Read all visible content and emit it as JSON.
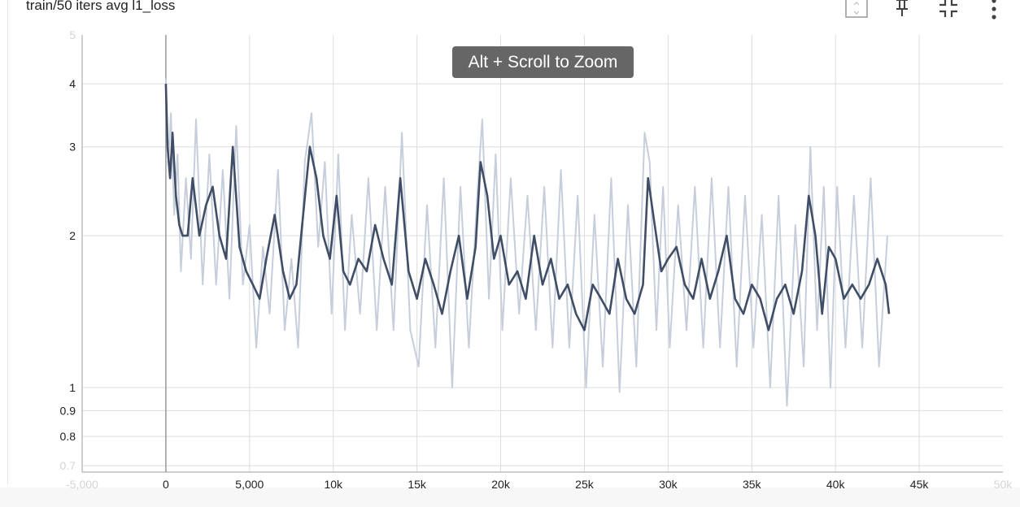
{
  "card": {
    "title": "train/50 iters avg l1_loss"
  },
  "toolbar": {
    "icons": [
      "fit-domain-icon",
      "pin-icon",
      "collapse-icon",
      "more-vert-icon"
    ]
  },
  "zoom_hint": "Alt + Scroll to Zoom",
  "colors": {
    "line": "#3f4e66",
    "raw_line": "#c7cedb",
    "grid": "#dddddd",
    "axis": "#9e9e9e",
    "tick_text": "#212121",
    "faded_tick_text": "#d4d4d4",
    "tooltip_bg": "#666666"
  },
  "chart_data": {
    "type": "line",
    "title": "train/50 iters avg l1_loss",
    "xlabel": "",
    "ylabel": "",
    "y_scale": "log",
    "xlim": [
      -5000,
      50000
    ],
    "ylim": [
      0.68,
      5.0
    ],
    "grid": true,
    "x_ticks": [
      {
        "value": -5000,
        "label": "-5,000",
        "faded": true
      },
      {
        "value": 0,
        "label": "0"
      },
      {
        "value": 5000,
        "label": "5,000"
      },
      {
        "value": 10000,
        "label": "10k"
      },
      {
        "value": 15000,
        "label": "15k"
      },
      {
        "value": 20000,
        "label": "20k"
      },
      {
        "value": 25000,
        "label": "25k"
      },
      {
        "value": 30000,
        "label": "30k"
      },
      {
        "value": 35000,
        "label": "35k"
      },
      {
        "value": 40000,
        "label": "40k"
      },
      {
        "value": 45000,
        "label": "45k"
      },
      {
        "value": 50000,
        "label": "50k",
        "faded": true
      }
    ],
    "y_ticks": [
      {
        "value": 0.7,
        "label": "0.7",
        "faded": true
      },
      {
        "value": 0.8,
        "label": "0.8"
      },
      {
        "value": 0.9,
        "label": "0.9"
      },
      {
        "value": 1,
        "label": "1"
      },
      {
        "value": 2,
        "label": "2"
      },
      {
        "value": 3,
        "label": "3"
      },
      {
        "value": 4,
        "label": "4"
      },
      {
        "value": 5,
        "label": "5",
        "faded": true
      }
    ],
    "series": [
      {
        "role": "smoothed",
        "x": [
          0,
          100,
          250,
          400,
          600,
          800,
          1000,
          1300,
          1600,
          2000,
          2400,
          2800,
          3200,
          3600,
          4000,
          4400,
          4800,
          5200,
          5600,
          6000,
          6500,
          7000,
          7400,
          7800,
          8200,
          8600,
          9000,
          9400,
          9800,
          10200,
          10600,
          11000,
          11500,
          12000,
          12500,
          13000,
          13500,
          14000,
          14500,
          15000,
          15500,
          16000,
          16500,
          17000,
          17500,
          18000,
          18500,
          18800,
          19200,
          19600,
          20000,
          20500,
          21000,
          21500,
          22000,
          22500,
          23000,
          23500,
          24000,
          24500,
          25000,
          25500,
          26000,
          26500,
          27000,
          27500,
          28000,
          28500,
          28800,
          29200,
          29600,
          30000,
          30500,
          31000,
          31500,
          32000,
          32500,
          33000,
          33500,
          34000,
          34500,
          35000,
          35500,
          36000,
          36500,
          37000,
          37500,
          38000,
          38400,
          38800,
          39200,
          39600,
          40000,
          40500,
          41000,
          41500,
          42000,
          42500,
          43000,
          43200
        ],
        "y": [
          4.0,
          3.0,
          2.6,
          3.2,
          2.4,
          2.1,
          2.0,
          2.0,
          2.6,
          2.0,
          2.3,
          2.5,
          2.0,
          1.8,
          3.0,
          1.9,
          1.7,
          1.6,
          1.5,
          1.8,
          2.2,
          1.7,
          1.5,
          1.6,
          2.2,
          3.0,
          2.6,
          2.0,
          1.8,
          2.4,
          1.7,
          1.6,
          1.8,
          1.7,
          2.1,
          1.8,
          1.6,
          2.6,
          1.7,
          1.5,
          1.8,
          1.6,
          1.4,
          1.7,
          2.0,
          1.5,
          1.9,
          2.8,
          2.4,
          1.8,
          2.0,
          1.6,
          1.7,
          1.5,
          2.0,
          1.6,
          1.8,
          1.5,
          1.6,
          1.4,
          1.3,
          1.6,
          1.5,
          1.4,
          1.8,
          1.5,
          1.4,
          1.6,
          2.6,
          2.1,
          1.7,
          1.8,
          1.9,
          1.6,
          1.5,
          1.8,
          1.5,
          1.7,
          2.0,
          1.5,
          1.4,
          1.6,
          1.5,
          1.3,
          1.5,
          1.6,
          1.4,
          1.7,
          2.4,
          2.0,
          1.4,
          1.9,
          1.8,
          1.5,
          1.6,
          1.5,
          1.6,
          1.8,
          1.6,
          1.4
        ],
        "color": "#3f4e66"
      },
      {
        "role": "raw",
        "x": [
          0,
          150,
          300,
          500,
          700,
          900,
          1200,
          1500,
          1800,
          2200,
          2600,
          3000,
          3400,
          3800,
          4200,
          4600,
          5000,
          5400,
          5800,
          6200,
          6700,
          7100,
          7500,
          7900,
          8300,
          8700,
          9100,
          9500,
          9900,
          10300,
          10700,
          11100,
          11600,
          12100,
          12600,
          13100,
          13600,
          14100,
          14600,
          15100,
          15600,
          16100,
          16600,
          17100,
          17600,
          18100,
          18600,
          18900,
          19300,
          19700,
          20100,
          20600,
          21100,
          21600,
          22100,
          22600,
          23100,
          23600,
          24100,
          24600,
          25100,
          25600,
          26100,
          26600,
          27100,
          27600,
          28100,
          28600,
          28900,
          29300,
          29700,
          30100,
          30600,
          31100,
          31600,
          32100,
          32600,
          33100,
          33600,
          34100,
          34600,
          35100,
          35600,
          36100,
          36600,
          37100,
          37600,
          38100,
          38500,
          38900,
          39300,
          39700,
          40100,
          40600,
          41100,
          41600,
          42100,
          42600,
          43100
        ],
        "y": [
          4.1,
          2.8,
          3.5,
          2.2,
          2.9,
          1.7,
          2.6,
          1.8,
          3.4,
          1.6,
          2.9,
          1.6,
          2.7,
          1.5,
          3.3,
          1.6,
          2.1,
          1.2,
          1.9,
          1.4,
          2.7,
          1.3,
          1.8,
          1.2,
          2.8,
          3.5,
          1.9,
          2.8,
          1.4,
          2.9,
          1.3,
          2.2,
          1.4,
          2.6,
          1.3,
          2.5,
          1.3,
          3.2,
          1.3,
          1.1,
          2.3,
          1.2,
          2.6,
          1.0,
          2.5,
          1.2,
          2.4,
          3.4,
          1.5,
          2.9,
          1.3,
          2.6,
          1.4,
          2.4,
          1.3,
          2.5,
          1.2,
          2.7,
          1.2,
          2.4,
          1.0,
          2.2,
          1.1,
          2.6,
          0.98,
          2.3,
          1.1,
          3.2,
          2.8,
          1.3,
          2.5,
          1.2,
          2.3,
          1.3,
          2.5,
          1.2,
          2.6,
          1.2,
          2.5,
          1.1,
          2.4,
          1.2,
          2.2,
          1.0,
          2.4,
          0.92,
          2.1,
          1.1,
          3.0,
          1.3,
          2.5,
          1.0,
          2.5,
          1.2,
          2.4,
          1.2,
          2.6,
          1.1,
          2.0
        ],
        "color": "#c7cedb"
      }
    ]
  }
}
